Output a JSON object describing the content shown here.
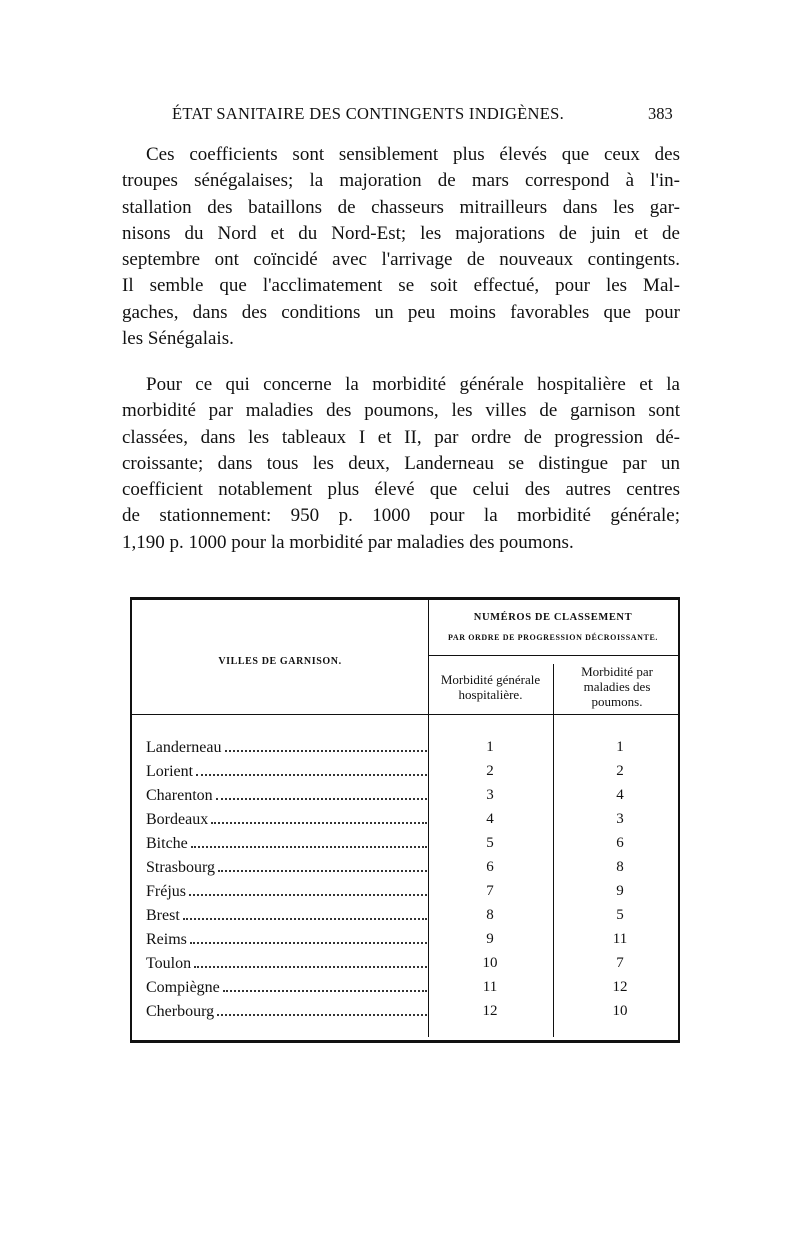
{
  "header": {
    "title": "ÉTAT SANITAIRE DES CONTINGENTS INDIGÈNES.",
    "page_number": "383"
  },
  "paragraphs": [
    {
      "lines": [
        "Ces coefficients sont sensiblement plus élevés que ceux des",
        "troupes sénégalaises; la majoration de mars correspond à l'in-",
        "stallation des bataillons de chasseurs mitrailleurs dans les gar-",
        "nisons du Nord et du Nord-Est; les majorations de juin et de",
        "septembre ont coïncidé avec l'arrivage de nouveaux contingents.",
        "Il semble que l'acclimatement se soit effectué, pour les Mal-",
        "gaches, dans des conditions un peu moins favorables que pour",
        "les Sénégalais."
      ]
    },
    {
      "lines": [
        "Pour ce qui concerne la morbidité générale hospitalière et la",
        "morbidité par maladies des poumons, les villes de garnison sont",
        "classées, dans les tableaux I et II, par ordre de progression dé-",
        "croissante; dans tous les deux, Landerneau se distingue par un",
        "coefficient notablement plus élevé que celui des autres centres",
        "de stationnement: 950 p. 1000 pour la morbidité générale;",
        "1,190 p. 1000 pour la morbidité par maladies des poumons."
      ]
    }
  ],
  "table": {
    "header_group": "NUMÉROS DE CLASSEMENT",
    "header_group_sub": "PAR ORDRE DE PROGRESSION DÉCROISSANTE.",
    "columns": [
      "VILLES DE GARNISON.",
      "Morbidité générale hospitalière.",
      "Morbidité par maladies des poumons."
    ],
    "rows": [
      [
        "Landerneau",
        1,
        1
      ],
      [
        "Lorient",
        2,
        2
      ],
      [
        "Charenton",
        3,
        4
      ],
      [
        "Bordeaux",
        4,
        3
      ],
      [
        "Bitche",
        5,
        6
      ],
      [
        "Strasbourg",
        6,
        8
      ],
      [
        "Fréjus",
        7,
        9
      ],
      [
        "Brest",
        8,
        5
      ],
      [
        "Reims",
        9,
        11
      ],
      [
        "Toulon",
        10,
        7
      ],
      [
        "Compiègne",
        11,
        12
      ],
      [
        "Cherbourg",
        12,
        10
      ]
    ]
  }
}
